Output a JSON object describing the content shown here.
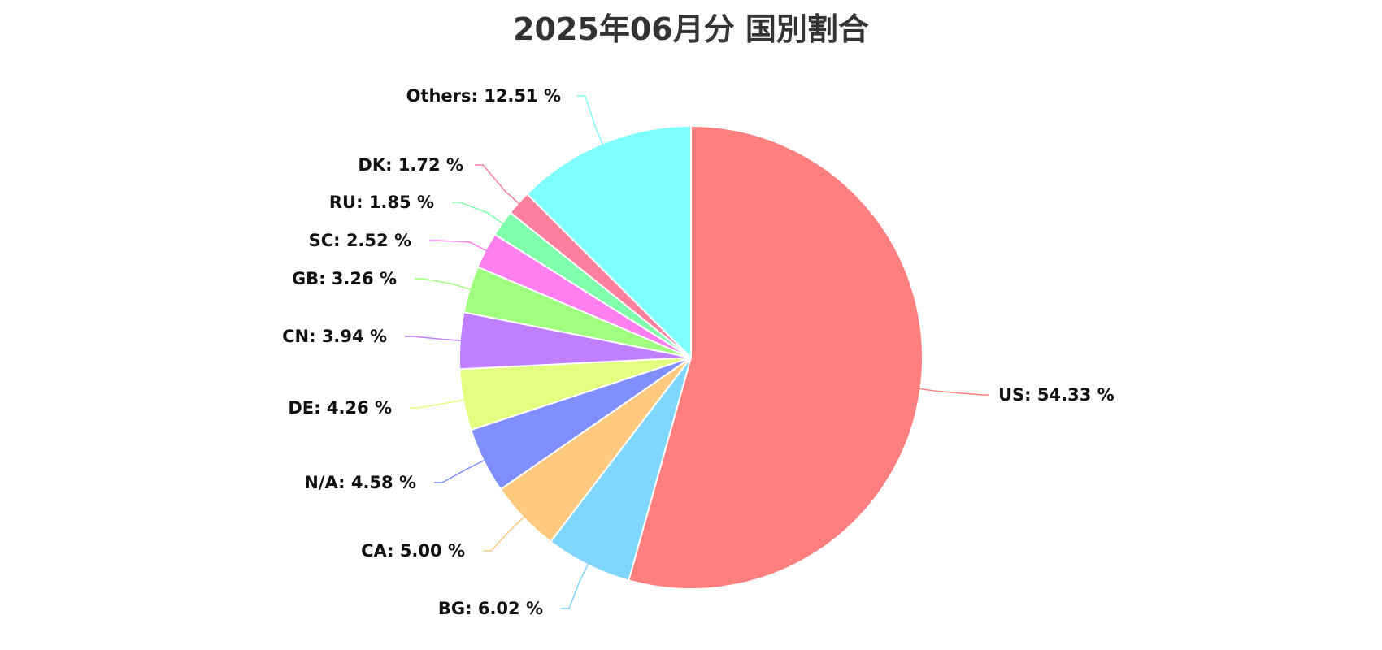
{
  "chart_data": {
    "type": "pie",
    "title": "2025年06月分 国別割合",
    "unit": "%",
    "slices": [
      {
        "label": "US",
        "value": 54.33,
        "text": "US: 54.33 %",
        "color": "#FF7F7F"
      },
      {
        "label": "BG",
        "value": 6.02,
        "text": "BG: 6.02 %",
        "color": "#7FD7FF"
      },
      {
        "label": "CA",
        "value": 5.0,
        "text": "CA: 5.00 %",
        "color": "#FFCA7F"
      },
      {
        "label": "N/A",
        "value": 4.58,
        "text": "N/A: 4.58 %",
        "color": "#7F8FFF"
      },
      {
        "label": "DE",
        "value": 4.26,
        "text": "DE: 4.26 %",
        "color": "#E4FF7F"
      },
      {
        "label": "CN",
        "value": 3.94,
        "text": "CN: 3.94 %",
        "color": "#BF7FFF"
      },
      {
        "label": "GB",
        "value": 3.26,
        "text": "GB: 3.26 %",
        "color": "#9FFF7F"
      },
      {
        "label": "SC",
        "value": 2.52,
        "text": "SC: 2.52 %",
        "color": "#FF7FF0"
      },
      {
        "label": "RU",
        "value": 1.85,
        "text": "RU: 1.85 %",
        "color": "#7FFFAA"
      },
      {
        "label": "DK",
        "value": 1.72,
        "text": "DK: 1.72 %",
        "color": "#FF7F9F"
      },
      {
        "label": "Others",
        "value": 12.51,
        "text": "Others: 12.51 %",
        "color": "#7FFFFF"
      }
    ],
    "start_angle": "12 o'clock",
    "direction": "clockwise",
    "legend": "none",
    "labels": "outside with leader lines"
  }
}
